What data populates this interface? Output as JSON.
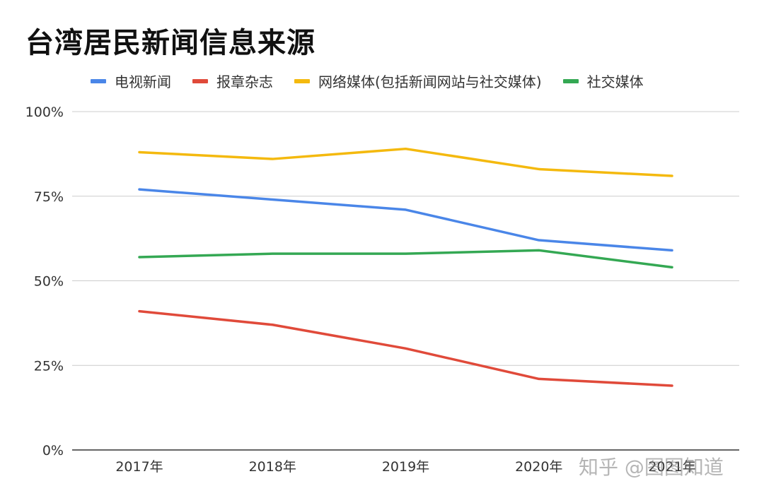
{
  "chart_data": {
    "type": "line",
    "title": "台湾居民新闻信息来源",
    "categories": [
      "2017年",
      "2018年",
      "2019年",
      "2020年",
      "2021年"
    ],
    "y_tick_labels": [
      "0%",
      "25%",
      "50%",
      "75%",
      "100%"
    ],
    "ylim": [
      0,
      100
    ],
    "grid": true,
    "legend_position": "top",
    "series": [
      {
        "name": "电视新闻",
        "color": "#4a86e8",
        "values": [
          77,
          74,
          71,
          62,
          59
        ]
      },
      {
        "name": "报章杂志",
        "color": "#e04a3a",
        "values": [
          41,
          37,
          30,
          21,
          19
        ]
      },
      {
        "name": "网络媒体(包括新闻网站与社交媒体)",
        "color": "#f4b90e",
        "values": [
          88,
          86,
          89,
          83,
          81
        ]
      },
      {
        "name": "社交媒体",
        "color": "#34a853",
        "values": [
          57,
          58,
          58,
          59,
          54
        ]
      }
    ]
  },
  "watermark": "知乎 @图图知道"
}
